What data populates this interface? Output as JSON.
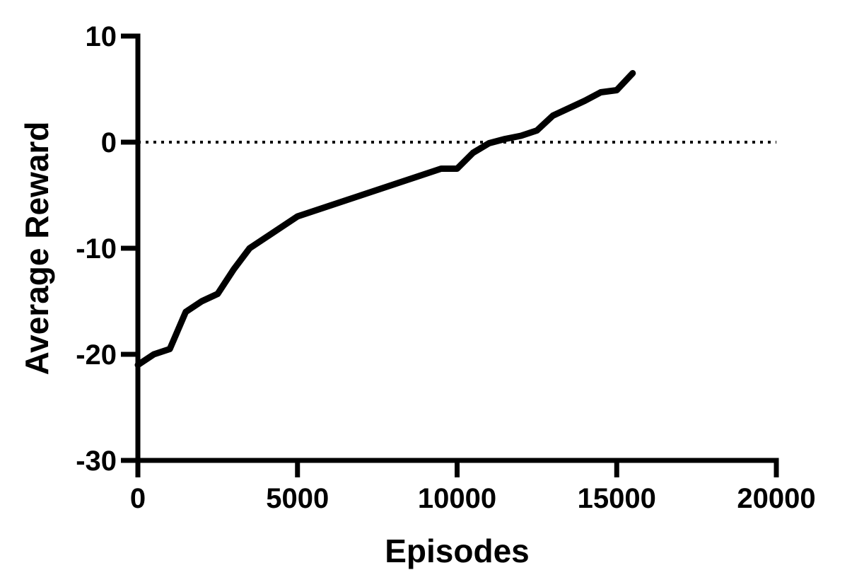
{
  "chart_data": {
    "type": "line",
    "title": "",
    "xlabel": "Episodes",
    "ylabel": "Average Reward",
    "xlim": [
      0,
      20000
    ],
    "ylim": [
      -30,
      10
    ],
    "xticks": [
      0,
      5000,
      10000,
      15000,
      20000
    ],
    "yticks": [
      -30,
      -20,
      -10,
      0,
      10
    ],
    "xtick_labels": [
      "0",
      "5000",
      "10000",
      "15000",
      "20000"
    ],
    "ytick_labels": [
      "-30",
      "-20",
      "-10",
      "0",
      "10"
    ],
    "grid": false,
    "reference_line": {
      "y": 0,
      "style": "dotted",
      "x_range": [
        0,
        20000
      ]
    },
    "series": [
      {
        "color": "#000000",
        "x": [
          0,
          500,
          1000,
          1500,
          2000,
          2500,
          3000,
          3500,
          4000,
          4500,
          5000,
          5500,
          6000,
          6500,
          7000,
          7500,
          8000,
          8500,
          9000,
          9500,
          10000,
          10500,
          11000,
          11500,
          12000,
          12500,
          13000,
          13500,
          14000,
          14500,
          15000,
          15500
        ],
        "y": [
          -21,
          -20,
          -19.5,
          -16,
          -15,
          -14.3,
          -12,
          -10,
          -9,
          -8,
          -7,
          -6.5,
          -6,
          -5.5,
          -5,
          -4.5,
          -4,
          -3.5,
          -3,
          -2.5,
          -2.5,
          -1,
          -0.1,
          0.3,
          0.6,
          1.1,
          2.5,
          3.2,
          3.9,
          4.7,
          4.9,
          6.5
        ]
      }
    ]
  }
}
